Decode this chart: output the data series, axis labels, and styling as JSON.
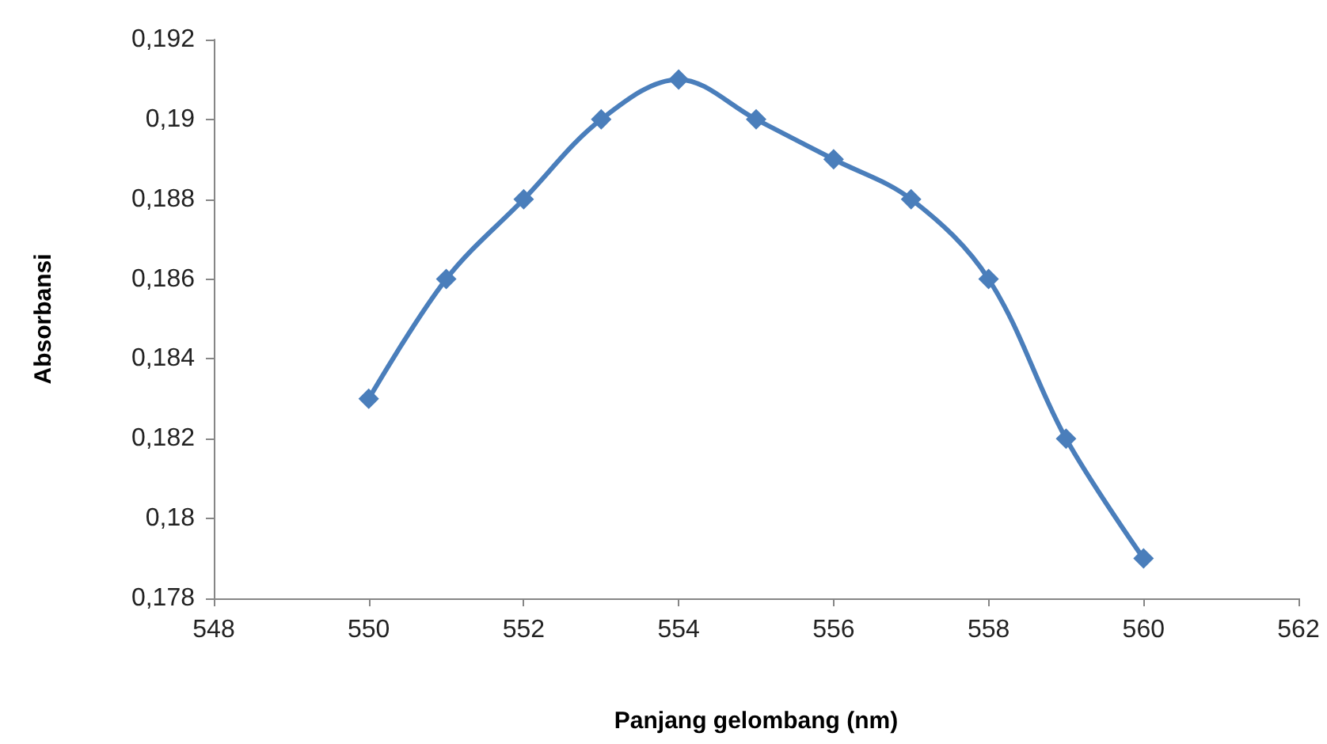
{
  "chart_data": {
    "type": "line",
    "xlabel": "Panjang gelombang (nm)",
    "ylabel": "Absorbansi",
    "x": [
      550,
      551,
      552,
      553,
      554,
      555,
      556,
      557,
      558,
      559,
      560
    ],
    "series": [
      {
        "color": "#4a7ebb",
        "values": [
          0.183,
          0.186,
          0.188,
          0.19,
          0.191,
          0.19,
          0.189,
          0.188,
          0.186,
          0.182,
          0.179
        ]
      }
    ],
    "xlim": [
      548,
      562
    ],
    "xticks": [
      548,
      550,
      552,
      554,
      556,
      558,
      560,
      562
    ],
    "ylim": [
      0.178,
      0.192
    ],
    "yticks": [
      {
        "value": 0.178,
        "label": "0,178"
      },
      {
        "value": 0.18,
        "label": "0,18"
      },
      {
        "value": 0.182,
        "label": "0,182"
      },
      {
        "value": 0.184,
        "label": "0,184"
      },
      {
        "value": 0.186,
        "label": "0,186"
      },
      {
        "value": 0.188,
        "label": "0,188"
      },
      {
        "value": 0.19,
        "label": "0,19"
      },
      {
        "value": 0.192,
        "label": "0,192"
      }
    ],
    "grid": false,
    "marker": "diamond",
    "line_style": "solid"
  }
}
